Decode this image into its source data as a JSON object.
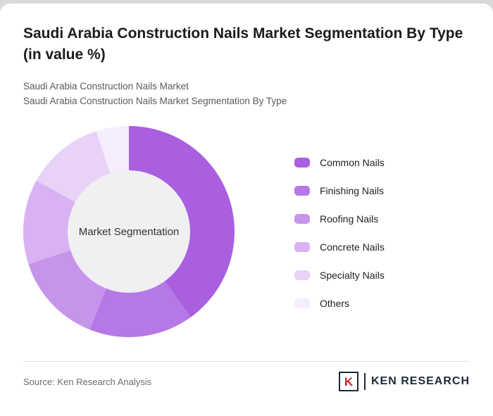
{
  "header": {
    "title": "Saudi Arabia Construction Nails Market Segmentation By Type (in value %)",
    "subtitle1": "Saudi Arabia Construction Nails Market",
    "subtitle2": "Saudi Arabia Construction Nails Market Segmentation By Type"
  },
  "chart_data": {
    "type": "pie",
    "title": "Saudi Arabia Construction Nails Market Segmentation By Type (in value %)",
    "center_label": "Market Segmentation",
    "categories": [
      "Common Nails",
      "Finishing Nails",
      "Roofing Nails",
      "Concrete Nails",
      "Specialty Nails",
      "Others"
    ],
    "values": [
      40,
      16,
      14,
      13,
      12,
      5
    ],
    "colors": [
      "#a95fe0",
      "#b678e6",
      "#c794ec",
      "#d8b2f2",
      "#e8d2f8",
      "#f6edfc"
    ],
    "hole_color": "#f0eff1",
    "legend_position": "right",
    "start_angle_deg": 0
  },
  "footer": {
    "source": "Source: Ken Research Analysis",
    "logo": {
      "k": "K",
      "text": "KEN RESEARCH"
    }
  }
}
